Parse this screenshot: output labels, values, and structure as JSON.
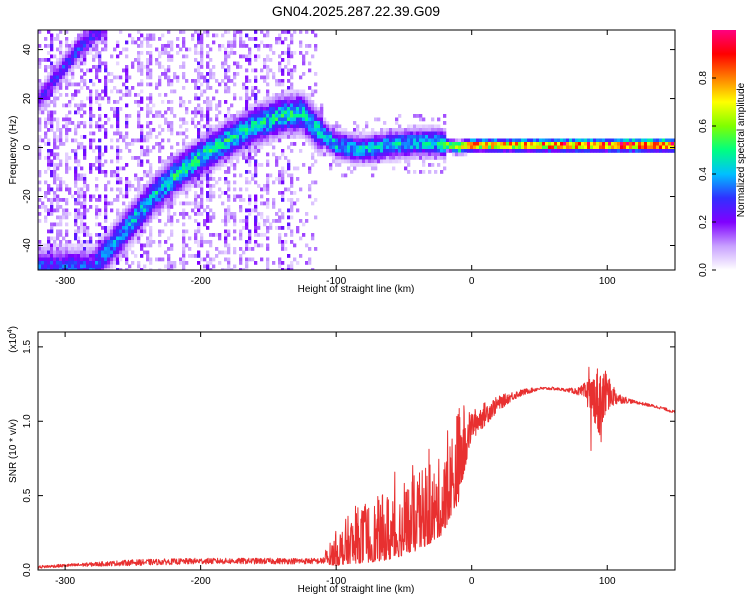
{
  "page_title": "GN04.2025.287.22.39.G09",
  "chart_data": [
    {
      "type": "heatmap",
      "xlabel": "Height of straight line (km)",
      "ylabel": "Frequency (Hz)",
      "xlim": [
        -320,
        150
      ],
      "ylim": [
        -50,
        48
      ],
      "xticks": [
        -300,
        -200,
        -100,
        0,
        100
      ],
      "yticks": [
        -40,
        -20,
        0,
        20,
        40
      ],
      "colorbar": {
        "label": "Normalized spectral amplitude",
        "range": [
          0,
          1
        ],
        "ticks": [
          "0.0",
          "0.2",
          "0.4",
          "0.6",
          "0.8"
        ],
        "colors": [
          "#ffffff",
          "#c8a0ff",
          "#8000ff",
          "#3030ff",
          "#00c0ff",
          "#00ff80",
          "#80ff00",
          "#ffff00",
          "#ff8000",
          "#ff0000",
          "#ff0080"
        ]
      },
      "main_ridge": {
        "x": [
          -280,
          -265,
          -250,
          -235,
          -220,
          -200,
          -180,
          -160,
          -140,
          -125,
          -115,
          -100,
          -80,
          -60,
          -40,
          -25,
          -10,
          0,
          20,
          50,
          80,
          95,
          110,
          150
        ],
        "y": [
          -49,
          -40,
          -30,
          -20,
          -12,
          -4,
          3,
          9,
          13,
          14,
          8,
          1,
          -1,
          1,
          2,
          2,
          0,
          1,
          1,
          1,
          1,
          1,
          1,
          1
        ],
        "amplitude": [
          0.3,
          0.35,
          0.4,
          0.42,
          0.45,
          0.45,
          0.45,
          0.42,
          0.45,
          0.45,
          0.42,
          0.4,
          0.42,
          0.42,
          0.42,
          0.45,
          0.7,
          0.8,
          0.75,
          0.85,
          0.9,
          0.8,
          0.9,
          0.95
        ]
      },
      "secondary_ridge": {
        "x": [
          -318,
          -305,
          -290,
          -275
        ],
        "y": [
          20,
          30,
          40,
          48
        ],
        "amplitude": [
          0.25,
          0.3,
          0.3,
          0.25
        ]
      }
    },
    {
      "type": "line",
      "xlabel": "Height of straight line (km)",
      "ylabel": "SNR (10 * v/v)",
      "y_multiplier": "(x10",
      "y_multiplier_exp": "4",
      "y_multiplier_close": ")",
      "xlim": [
        -320,
        150
      ],
      "ylim": [
        0,
        1.6
      ],
      "xticks": [
        -300,
        -200,
        -100,
        0,
        100
      ],
      "yticks": [
        "0.0",
        "0.5",
        "1.0",
        "1.5"
      ],
      "color": "#e83030",
      "series": [
        {
          "x": [
            -320,
            -300,
            -250,
            -200,
            -150,
            -110,
            -100,
            -90,
            -80,
            -70,
            -60,
            -50,
            -40,
            -30,
            -20,
            -15,
            -10,
            -5,
            0,
            10,
            20,
            30,
            40,
            50,
            60,
            70,
            80,
            90,
            95,
            100,
            110,
            120,
            130,
            140,
            150
          ],
          "y": [
            0.02,
            0.03,
            0.05,
            0.06,
            0.06,
            0.06,
            0.12,
            0.17,
            0.2,
            0.22,
            0.25,
            0.28,
            0.33,
            0.38,
            0.45,
            0.6,
            0.7,
            0.85,
            0.97,
            1.05,
            1.12,
            1.17,
            1.2,
            1.22,
            1.22,
            1.21,
            1.2,
            1.17,
            1.12,
            1.19,
            1.15,
            1.13,
            1.11,
            1.09,
            1.06
          ],
          "noise": [
            0.01,
            0.01,
            0.02,
            0.02,
            0.02,
            0.02,
            0.1,
            0.14,
            0.17,
            0.18,
            0.2,
            0.2,
            0.22,
            0.22,
            0.22,
            0.25,
            0.28,
            0.2,
            0.1,
            0.08,
            0.05,
            0.03,
            0.02,
            0.01,
            0.01,
            0.01,
            0.03,
            0.15,
            0.3,
            0.12,
            0.03,
            0.01,
            0.01,
            0.01,
            0.01
          ]
        }
      ]
    }
  ]
}
